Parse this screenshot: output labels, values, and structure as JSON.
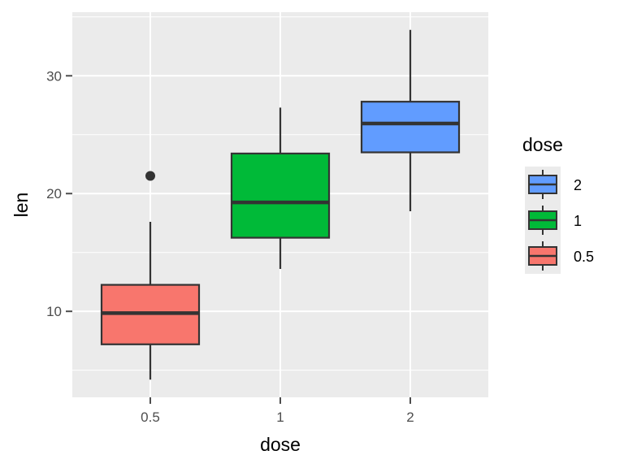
{
  "chart_data": {
    "type": "boxplot",
    "title": "",
    "xlabel": "dose",
    "ylabel": "len",
    "categories": [
      "0.5",
      "1",
      "2"
    ],
    "series": [
      {
        "name": "0.5",
        "color": "#F8766D",
        "min": 4.2,
        "q1": 7.2,
        "median": 9.85,
        "q3": 12.25,
        "max": 17.6,
        "outliers": [
          21.5
        ]
      },
      {
        "name": "1",
        "color": "#00BA38",
        "min": 13.6,
        "q1": 16.25,
        "median": 19.25,
        "q3": 23.4,
        "max": 27.3,
        "outliers": []
      },
      {
        "name": "2",
        "color": "#619CFF",
        "min": 18.5,
        "q1": 23.5,
        "median": 25.95,
        "q3": 27.8,
        "max": 33.9,
        "outliers": []
      }
    ],
    "yticks": [
      10,
      20,
      30
    ],
    "ylim": [
      2.7,
      35.4
    ],
    "grid": true,
    "legend": {
      "title": "dose",
      "position": "right",
      "entries": [
        {
          "label": "2",
          "color": "#619CFF"
        },
        {
          "label": "1",
          "color": "#00BA38"
        },
        {
          "label": "0.5",
          "color": "#F8766D"
        }
      ]
    },
    "colors": {
      "panel": "#EBEBEB",
      "grid": "#FFFFFF",
      "box_outline": "#333333",
      "ticks": "#4D4D4D"
    }
  }
}
